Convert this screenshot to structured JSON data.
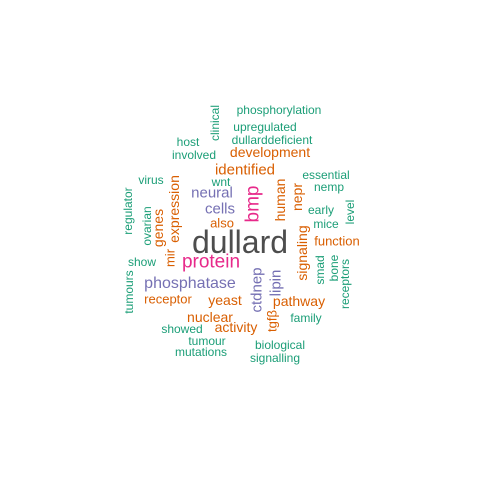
{
  "colors": {
    "dark": "#4d4d4d",
    "magenta": "#e7298a",
    "purple": "#7570b3",
    "orange": "#d95f02",
    "teal": "#1b9e77"
  },
  "words": [
    {
      "text": "dullard",
      "color": "dark",
      "rotated": false
    },
    {
      "text": "protein",
      "color": "magenta",
      "rotated": false
    },
    {
      "text": "bmp",
      "color": "magenta",
      "rotated": true
    },
    {
      "text": "phosphatase",
      "color": "purple",
      "rotated": false
    },
    {
      "text": "cells",
      "color": "purple",
      "rotated": false
    },
    {
      "text": "neural",
      "color": "purple",
      "rotated": false
    },
    {
      "text": "ctdnep",
      "color": "purple",
      "rotated": true
    },
    {
      "text": "lipin",
      "color": "purple",
      "rotated": true
    },
    {
      "text": "identified",
      "color": "orange",
      "rotated": false
    },
    {
      "text": "development",
      "color": "orange",
      "rotated": false
    },
    {
      "text": "expression",
      "color": "orange",
      "rotated": true
    },
    {
      "text": "genes",
      "color": "orange",
      "rotated": true
    },
    {
      "text": "also",
      "color": "orange",
      "rotated": false
    },
    {
      "text": "mir",
      "color": "orange",
      "rotated": true
    },
    {
      "text": "human",
      "color": "orange",
      "rotated": true
    },
    {
      "text": "nepr",
      "color": "orange",
      "rotated": true
    },
    {
      "text": "signaling",
      "color": "orange",
      "rotated": true
    },
    {
      "text": "function",
      "color": "orange",
      "rotated": false
    },
    {
      "text": "yeast",
      "color": "orange",
      "rotated": false
    },
    {
      "text": "receptor",
      "color": "orange",
      "rotated": false
    },
    {
      "text": "pathway",
      "color": "orange",
      "rotated": false
    },
    {
      "text": "nuclear",
      "color": "orange",
      "rotated": false
    },
    {
      "text": "activity",
      "color": "orange",
      "rotated": false
    },
    {
      "text": "tgfβ",
      "color": "orange",
      "rotated": true
    },
    {
      "text": "phosphorylation",
      "color": "teal",
      "rotated": false
    },
    {
      "text": "clinical",
      "color": "teal",
      "rotated": true
    },
    {
      "text": "upregulated",
      "color": "teal",
      "rotated": false
    },
    {
      "text": "host",
      "color": "teal",
      "rotated": false
    },
    {
      "text": "dullarddeficient",
      "color": "teal",
      "rotated": false
    },
    {
      "text": "involved",
      "color": "teal",
      "rotated": false
    },
    {
      "text": "essential",
      "color": "teal",
      "rotated": false
    },
    {
      "text": "virus",
      "color": "teal",
      "rotated": false
    },
    {
      "text": "wnt",
      "color": "teal",
      "rotated": false
    },
    {
      "text": "nemp",
      "color": "teal",
      "rotated": false
    },
    {
      "text": "regulator",
      "color": "teal",
      "rotated": true
    },
    {
      "text": "early",
      "color": "teal",
      "rotated": false
    },
    {
      "text": "level",
      "color": "teal",
      "rotated": true
    },
    {
      "text": "ovarian",
      "color": "teal",
      "rotated": true
    },
    {
      "text": "mice",
      "color": "teal",
      "rotated": false
    },
    {
      "text": "show",
      "color": "teal",
      "rotated": false
    },
    {
      "text": "smad",
      "color": "teal",
      "rotated": true
    },
    {
      "text": "bone",
      "color": "teal",
      "rotated": true
    },
    {
      "text": "receptors",
      "color": "teal",
      "rotated": true
    },
    {
      "text": "tumours",
      "color": "teal",
      "rotated": true
    },
    {
      "text": "family",
      "color": "teal",
      "rotated": false
    },
    {
      "text": "showed",
      "color": "teal",
      "rotated": false
    },
    {
      "text": "tumour",
      "color": "teal",
      "rotated": false
    },
    {
      "text": "biological",
      "color": "teal",
      "rotated": false
    },
    {
      "text": "mutations",
      "color": "teal",
      "rotated": false
    },
    {
      "text": "signalling",
      "color": "teal",
      "rotated": false
    }
  ]
}
